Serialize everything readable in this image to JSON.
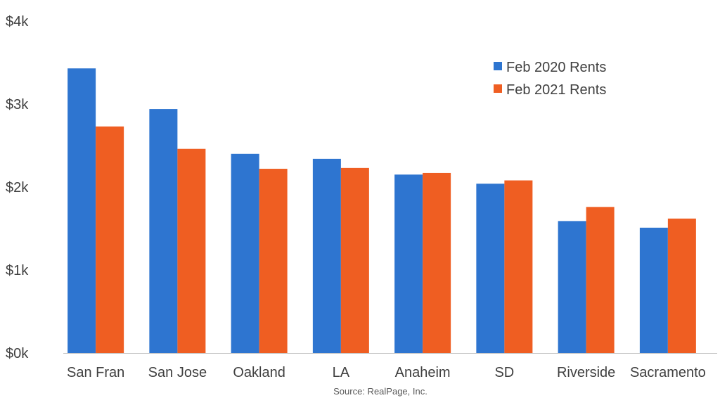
{
  "chart_data": {
    "type": "bar",
    "categories": [
      "San Fran",
      "San Jose",
      "Oakland",
      "LA",
      "Anaheim",
      "SD",
      "Riverside",
      "Sacramento"
    ],
    "series": [
      {
        "name": "Feb 2020 Rents",
        "color": "#2e75d0",
        "values": [
          3430,
          2940,
          2400,
          2340,
          2150,
          2040,
          1590,
          1510
        ]
      },
      {
        "name": "Feb 2021 Rents",
        "color": "#ef5e22",
        "values": [
          2730,
          2460,
          2220,
          2230,
          2170,
          2080,
          1760,
          1620
        ]
      }
    ],
    "ylim": [
      0,
      4000
    ],
    "yticks": [
      0,
      1000,
      2000,
      3000,
      4000
    ],
    "ytick_labels": [
      "$0k",
      "$1k",
      "$2k",
      "$3k",
      "$4k"
    ],
    "legend_position": "top-right",
    "grid": false
  },
  "source": "Source: RealPage, Inc."
}
